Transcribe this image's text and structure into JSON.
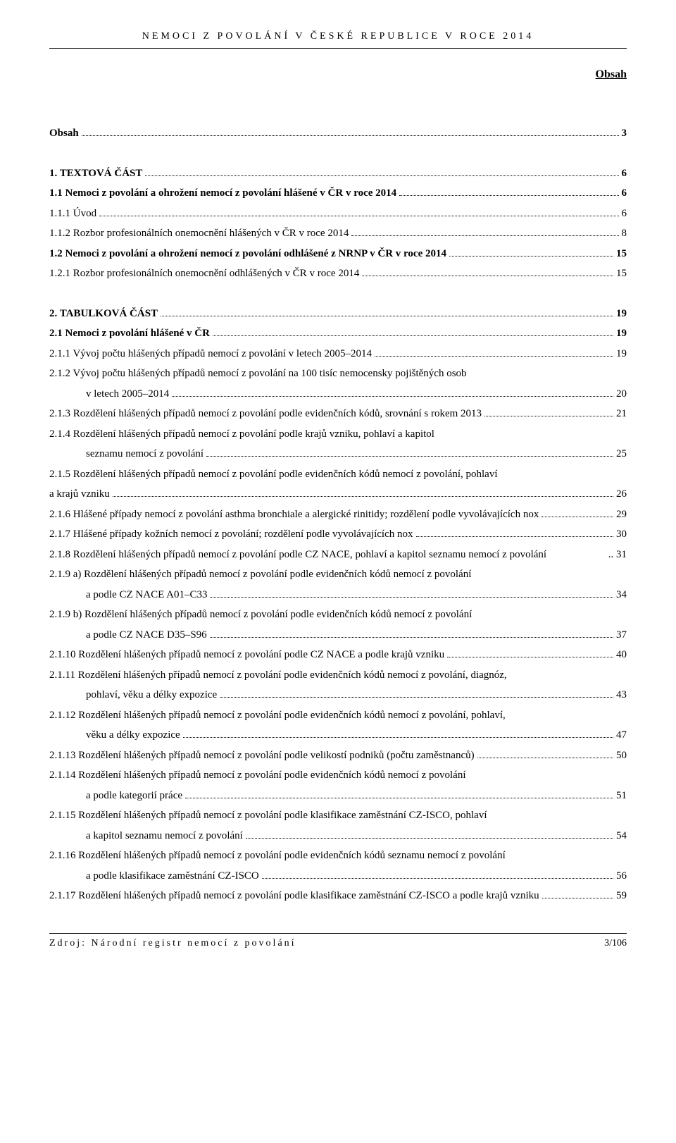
{
  "runningHeader": "NEMOCI Z POVOLÁNÍ V ČESKÉ REPUBLICE V ROCE 2014",
  "sectionLabel": "Obsah",
  "footer": {
    "left": "Zdroj: Národní registr nemocí z povolání",
    "right": "3/106"
  },
  "toc": [
    {
      "text": "Obsah",
      "page": "3",
      "bold": true,
      "gapBefore": false
    },
    {
      "text": "1. TEXTOVÁ ČÁST",
      "page": "6",
      "bold": true,
      "gapBefore": true
    },
    {
      "text": "1.1 Nemoci z povolání a ohrožení nemocí z povolání hlášené v ČR v roce 2014",
      "page": "6",
      "bold": true
    },
    {
      "text": "1.1.1 Úvod",
      "page": "6"
    },
    {
      "text": "1.1.2 Rozbor profesionálních onemocnění hlášených v ČR v roce 2014",
      "page": "8"
    },
    {
      "text": "1.2 Nemoci z povolání a ohrožení nemocí z povolání odhlášené z NRNP v ČR v roce 2014",
      "page": "15",
      "bold": true
    },
    {
      "text": "1.2.1 Rozbor profesionálních onemocnění odhlášených v ČR v roce 2014",
      "page": "15"
    },
    {
      "text": "2. TABULKOVÁ ČÁST",
      "page": "19",
      "bold": true,
      "gapBefore": true
    },
    {
      "text": "2.1 Nemoci z povolání hlášené v ČR",
      "page": "19",
      "bold": true
    },
    {
      "text": "2.1.1 Vývoj počtu hlášených případů nemocí z povolání v letech 2005–2014",
      "page": "19"
    },
    {
      "text": "2.1.2 Vývoj počtu hlášených případů nemocí z povolání na 100 tisíc nemocensky pojištěných osob",
      "cont": "v letech 2005–2014",
      "page": "20"
    },
    {
      "text": "2.1.3 Rozdělení hlášených případů nemocí z povolání podle evidenčních kódů, srovnání s rokem 2013",
      "page": "21"
    },
    {
      "text": "2.1.4 Rozdělení hlášených případů nemocí z povolání podle krajů vzniku, pohlaví a kapitol",
      "cont": "seznamu nemocí z povolání",
      "page": "25"
    },
    {
      "text": "2.1.5 Rozdělení hlášených případů nemocí z povolání podle evidenčních kódů nemocí z povolání, pohlaví",
      "textCont": "a krajů vzniku",
      "page": "26"
    },
    {
      "text": "2.1.6 Hlášené případy nemocí z povolání asthma bronchiale a alergické rinitidy; rozdělení podle vyvolávajících nox",
      "page": "29"
    },
    {
      "text": "2.1.7 Hlášené případy kožních nemocí z povolání; rozdělení podle vyvolávajících nox",
      "page": "30"
    },
    {
      "text": "2.1.8 Rozdělení hlášených případů nemocí z povolání podle CZ NACE, pohlaví a kapitol seznamu nemocí z povolání",
      "page": "31",
      "leaderDots": false
    },
    {
      "text": "2.1.9 a) Rozdělení hlášených případů nemocí z povolání podle evidenčních kódů nemocí z povolání",
      "cont": "a podle CZ NACE A01–C33",
      "page": "34"
    },
    {
      "text": "2.1.9 b) Rozdělení hlášených případů nemocí z povolání podle evidenčních kódů nemocí z povolání",
      "cont": "a podle CZ NACE D35–S96",
      "page": "37"
    },
    {
      "text": "2.1.10 Rozdělení hlášených případů nemocí z povolání podle CZ NACE a podle krajů vzniku",
      "page": "40"
    },
    {
      "text": "2.1.11 Rozdělení hlášených případů nemocí z povolání podle evidenčních kódů nemocí z povolání, diagnóz,",
      "cont": "pohlaví, věku a délky expozice",
      "page": "43"
    },
    {
      "text": "2.1.12 Rozdělení hlášených případů nemocí z povolání podle evidenčních kódů nemocí z povolání, pohlaví,",
      "cont": "věku a délky expozice",
      "page": "47"
    },
    {
      "text": "2.1.13 Rozdělení hlášených případů nemocí z povolání podle velikostí podniků (počtu zaměstnanců)",
      "page": "50"
    },
    {
      "text": "2.1.14 Rozdělení hlášených případů nemocí z povolání podle evidenčních kódů nemocí z povolání",
      "cont": "a podle kategorií práce",
      "page": "51"
    },
    {
      "text": "2.1.15 Rozdělení hlášených případů nemocí z povolání podle klasifikace zaměstnání CZ-ISCO, pohlaví",
      "cont": "a kapitol seznamu nemocí z povolání",
      "page": "54"
    },
    {
      "text": "2.1.16 Rozdělení hlášených případů nemocí z povolání podle evidenčních kódů seznamu nemocí z povolání",
      "cont": "a podle klasifikace zaměstnání CZ-ISCO",
      "page": "56"
    },
    {
      "text": "2.1.17 Rozdělení hlášených případů nemocí z povolání podle klasifikace zaměstnání CZ-ISCO a podle krajů vzniku",
      "page": "59"
    }
  ]
}
